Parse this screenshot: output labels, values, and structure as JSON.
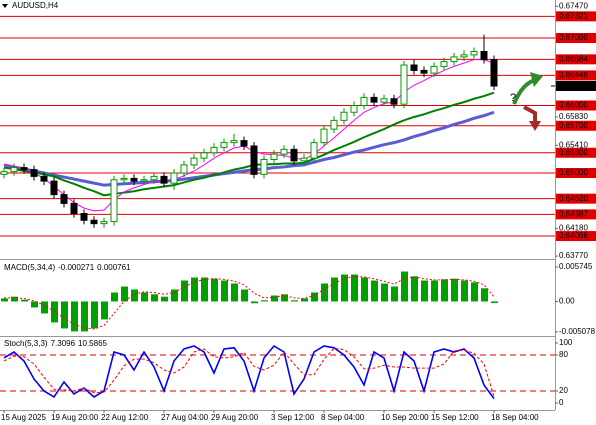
{
  "chart_data": [
    {
      "type": "candlestick",
      "title": "AUDUSD,H4",
      "categories": [
        "15 Aug 2025",
        null,
        null,
        null,
        null,
        "19 Aug 20:00",
        null,
        null,
        null,
        null,
        "22 Aug 12:00",
        null,
        null,
        null,
        null,
        null,
        "27 Aug 04:00",
        null,
        null,
        null,
        null,
        "29 Aug 20:00",
        null,
        null,
        null,
        null,
        null,
        "3 Sep 12:00",
        null,
        null,
        null,
        null,
        "8 Sep 04:00",
        null,
        null,
        null,
        null,
        null,
        "10 Sep 20:00",
        null,
        null,
        null,
        null,
        "15 Sep 12:00",
        null,
        null,
        null,
        null,
        null,
        "18 Sep 04:00"
      ],
      "open": [
        0.6498,
        0.6502,
        0.6508,
        0.6505,
        0.6495,
        0.6488,
        0.6468,
        0.6455,
        0.644,
        0.643,
        0.6425,
        0.6428,
        0.649,
        0.6492,
        0.6488,
        0.649,
        0.6495,
        0.6485,
        0.65,
        0.6512,
        0.6522,
        0.653,
        0.6538,
        0.6545,
        0.6548,
        0.654,
        0.6498,
        0.652,
        0.6528,
        0.6535,
        0.6518,
        0.6522,
        0.6545,
        0.6565,
        0.6578,
        0.659,
        0.66,
        0.6612,
        0.6605,
        0.661,
        0.6602,
        0.666,
        0.6652,
        0.6648,
        0.6658,
        0.6665,
        0.6672,
        0.6675,
        0.668,
        0.6668
      ],
      "high": [
        0.6508,
        0.6514,
        0.6514,
        0.6511,
        0.6501,
        0.6494,
        0.6474,
        0.6461,
        0.6446,
        0.6436,
        0.6434,
        0.6496,
        0.6498,
        0.6498,
        0.6496,
        0.6501,
        0.6501,
        0.6506,
        0.6518,
        0.6528,
        0.6536,
        0.6544,
        0.6551,
        0.6558,
        0.6554,
        0.6546,
        0.6526,
        0.6534,
        0.6541,
        0.6541,
        0.6528,
        0.6551,
        0.6571,
        0.6584,
        0.6596,
        0.6606,
        0.6618,
        0.6618,
        0.6616,
        0.6616,
        0.6666,
        0.6668,
        0.6658,
        0.6664,
        0.6671,
        0.6678,
        0.6682,
        0.6686,
        0.6705,
        0.6674
      ],
      "low": [
        0.6492,
        0.6496,
        0.6499,
        0.6489,
        0.6482,
        0.6462,
        0.6449,
        0.6434,
        0.6424,
        0.6419,
        0.6419,
        0.6422,
        0.6484,
        0.6482,
        0.6482,
        0.6484,
        0.6479,
        0.6475,
        0.6494,
        0.6506,
        0.6516,
        0.6524,
        0.6532,
        0.6539,
        0.6534,
        0.6492,
        0.6492,
        0.6514,
        0.6522,
        0.6512,
        0.6512,
        0.6516,
        0.6539,
        0.6559,
        0.6572,
        0.6584,
        0.6594,
        0.6599,
        0.6599,
        0.6596,
        0.6596,
        0.6646,
        0.6642,
        0.6642,
        0.6652,
        0.6659,
        0.6666,
        0.6669,
        0.6662,
        0.6623
      ],
      "close": [
        0.6502,
        0.6508,
        0.6505,
        0.6495,
        0.6488,
        0.6468,
        0.6455,
        0.644,
        0.643,
        0.6425,
        0.6428,
        0.649,
        0.6492,
        0.6488,
        0.649,
        0.6495,
        0.6485,
        0.65,
        0.6512,
        0.6522,
        0.653,
        0.6538,
        0.6545,
        0.6548,
        0.654,
        0.6498,
        0.652,
        0.6528,
        0.6535,
        0.6518,
        0.6522,
        0.6545,
        0.6565,
        0.6578,
        0.659,
        0.66,
        0.6612,
        0.6605,
        0.661,
        0.6602,
        0.666,
        0.6652,
        0.6648,
        0.6658,
        0.6665,
        0.6672,
        0.6675,
        0.668,
        0.6668,
        0.66289
      ],
      "bull_color": "#009900",
      "bear_color": "#000000",
      "series": [
        {
          "color": "#5b5bd6",
          "width": 3,
          "values": [
            0.6512,
            0.6509,
            0.6506,
            0.6503,
            0.65,
            0.6497,
            0.6494,
            0.6491,
            0.6488,
            0.6485,
            0.6482,
            0.6483,
            0.6484,
            0.6485,
            0.6486,
            0.6487,
            0.6488,
            0.6489,
            0.6491,
            0.6493,
            0.6495,
            0.6497,
            0.6499,
            0.6501,
            0.6503,
            0.6505,
            0.6506,
            0.6508,
            0.6509,
            0.6511,
            0.6512,
            0.6516,
            0.652,
            0.6523,
            0.6527,
            0.6531,
            0.6534,
            0.6538,
            0.6542,
            0.6545,
            0.6549,
            0.6554,
            0.6558,
            0.6563,
            0.6567,
            0.6572,
            0.6576,
            0.6581,
            0.6585,
            0.659
          ]
        },
        {
          "color": "#008000",
          "width": 2,
          "values": [
            0.6508,
            0.6506,
            0.6503,
            0.6501,
            0.6498,
            0.6495,
            0.6489,
            0.6484,
            0.6478,
            0.6473,
            0.6467,
            0.6469,
            0.6471,
            0.6473,
            0.6476,
            0.6478,
            0.648,
            0.6482,
            0.6486,
            0.649,
            0.6493,
            0.6497,
            0.6501,
            0.6505,
            0.6508,
            0.6512,
            0.6513,
            0.6513,
            0.6514,
            0.6514,
            0.6515,
            0.6521,
            0.6527,
            0.6534,
            0.654,
            0.6546,
            0.6553,
            0.6559,
            0.6565,
            0.6572,
            0.6578,
            0.6583,
            0.6587,
            0.6592,
            0.6596,
            0.6601,
            0.6605,
            0.661,
            0.6614,
            0.6619
          ]
        },
        {
          "color": "#ff00ff",
          "width": 1,
          "values": [
            0.6512,
            0.651,
            0.6506,
            0.65,
            0.6492,
            0.648,
            0.6468,
            0.6456,
            0.6448,
            0.6444,
            0.6445,
            0.646,
            0.6472,
            0.6478,
            0.6483,
            0.6487,
            0.6487,
            0.649,
            0.6496,
            0.6503,
            0.6512,
            0.6522,
            0.653,
            0.6537,
            0.654,
            0.6532,
            0.6528,
            0.6527,
            0.6526,
            0.6522,
            0.652,
            0.6528,
            0.654,
            0.6552,
            0.6565,
            0.6578,
            0.659,
            0.6597,
            0.6603,
            0.6605,
            0.662,
            0.663,
            0.6637,
            0.6645,
            0.6652,
            0.6658,
            0.6663,
            0.6668,
            0.6668,
            0.6662
          ]
        }
      ],
      "ylim": [
        0.63741,
        0.67563
      ],
      "yticks": [
        {
          "value": 0.6747,
          "label": "0.67470"
        },
        {
          "value": 0.6583,
          "label": "0.65830"
        },
        {
          "value": 0.6541,
          "label": "0.65410"
        },
        {
          "value": 0.6418,
          "label": "0.64180"
        },
        {
          "value": 0.6377,
          "label": "0.63770"
        }
      ],
      "levels": [
        0.67321,
        {
          "value": 0.67,
          "label": "0.67000"
        },
        0.66684,
        0.66446,
        {
          "value": 0.66,
          "label": "0.66000"
        },
        {
          "value": 0.657,
          "label": "0.65700"
        },
        {
          "value": 0.653,
          "label": "0.65300"
        },
        {
          "value": 0.65,
          "label": "0.65000"
        },
        {
          "value": 0.6462,
          "label": "0.64620"
        },
        0.64387,
        0.64066
      ],
      "level_color": "#e00000",
      "current_price": 0.66289,
      "annotation": "?"
    },
    {
      "type": "bar",
      "title": "MACD(5,34,4)",
      "color": "#00a000",
      "values": [
        0.0005,
        0.0008,
        0.0003,
        -0.001,
        -0.002,
        -0.0035,
        -0.0045,
        -0.005,
        -0.005,
        -0.0045,
        -0.003,
        0.0015,
        0.0025,
        0.002,
        0.0015,
        0.0012,
        0.0008,
        0.002,
        0.0035,
        0.004,
        0.004,
        0.0038,
        0.0035,
        0.003,
        0.002,
        -0.0003,
        0.0002,
        0.001,
        0.0012,
        0.0002,
        0.0005,
        0.0015,
        0.003,
        0.004,
        0.0045,
        0.0045,
        0.004,
        0.0035,
        0.003,
        0.0025,
        0.005,
        0.0042,
        0.0035,
        0.0035,
        0.0037,
        0.0038,
        0.0035,
        0.0032,
        0.0022,
        -0.000271
      ],
      "signal": {
        "color": "#ff0000",
        "values": [
          0.0006,
          0.0006,
          0.0005,
          0.0001,
          -0.0006,
          -0.0016,
          -0.0028,
          -0.0038,
          -0.0044,
          -0.0046,
          -0.004,
          -0.002,
          0.0,
          0.0012,
          0.0016,
          0.0015,
          0.0012,
          0.0015,
          0.0024,
          0.0032,
          0.0037,
          0.0038,
          0.0037,
          0.0034,
          0.0028,
          0.0014,
          0.0006,
          0.0007,
          0.001,
          0.0006,
          0.0005,
          0.001,
          0.002,
          0.003,
          0.0038,
          0.0042,
          0.0041,
          0.0038,
          0.0034,
          0.0029,
          0.0038,
          0.0041,
          0.0038,
          0.0036,
          0.0036,
          0.0037,
          0.0036,
          0.0034,
          0.0028,
          0.000761
        ]
      },
      "ylim": [
        -0.0056,
        0.00676
      ],
      "yticks": [
        0.005745,
        {
          "value": 0,
          "label": "0.00"
        },
        -0.005078
      ]
    },
    {
      "type": "line",
      "title": "Stoch(5,3,3)",
      "series": [
        {
          "color": "#0000ff",
          "values": [
            75,
            85,
            70,
            40,
            20,
            10,
            35,
            15,
            25,
            10,
            20,
            85,
            80,
            55,
            85,
            60,
            20,
            70,
            90,
            95,
            85,
            50,
            90,
            92,
            70,
            20,
            75,
            95,
            85,
            15,
            40,
            85,
            95,
            92,
            80,
            60,
            30,
            85,
            75,
            20,
            85,
            70,
            20,
            85,
            90,
            85,
            90,
            75,
            30,
            7.3096
          ]
        },
        {
          "color": "#ff0000",
          "dashed": true,
          "values": [
            70,
            78,
            77,
            65,
            43,
            23,
            22,
            20,
            25,
            17,
            18,
            38,
            62,
            73,
            73,
            67,
            55,
            50,
            60,
            85,
            90,
            77,
            75,
            77,
            84,
            61,
            55,
            63,
            85,
            65,
            47,
            47,
            73,
            91,
            89,
            77,
            57,
            58,
            63,
            60,
            60,
            58,
            58,
            58,
            65,
            87,
            88,
            83,
            65,
            10.5865
          ]
        }
      ],
      "ylim": [
        -11.7,
        108.3
      ],
      "yticks": [
        100,
        80,
        20,
        0
      ],
      "levels": [
        80,
        20
      ],
      "level_color": "#e00000"
    }
  ]
}
